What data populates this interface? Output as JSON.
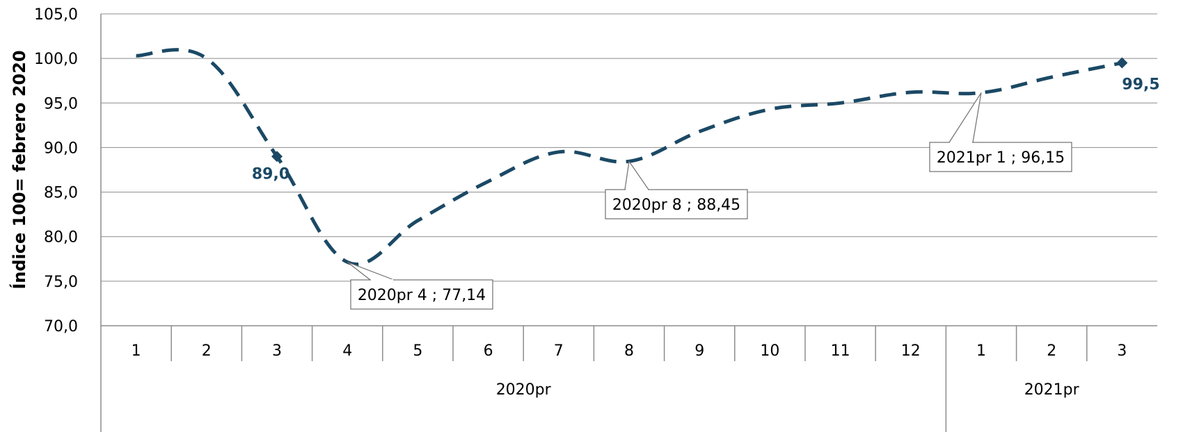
{
  "chart_data": {
    "type": "line",
    "ylabel": "Índice 100= febrero 2020",
    "ylim": [
      70,
      105
    ],
    "yticks": [
      "70,0",
      "75,0",
      "80,0",
      "85,0",
      "90,0",
      "95,0",
      "100,0",
      "105,0"
    ],
    "categories": [
      "1",
      "2",
      "3",
      "4",
      "5",
      "6",
      "7",
      "8",
      "9",
      "10",
      "11",
      "12",
      "1",
      "2",
      "3"
    ],
    "groups": [
      {
        "label": "2020pr",
        "count": 12
      },
      {
        "label": "2021pr",
        "count": 3
      }
    ],
    "series": [
      {
        "values": [
          100.3,
          100.0,
          89.0,
          77.14,
          81.8,
          86.2,
          89.5,
          88.45,
          91.8,
          94.3,
          95.0,
          96.2,
          96.15,
          97.9,
          99.5
        ],
        "color": "#1b4965",
        "line_style": "dashed"
      }
    ],
    "data_labels": [
      {
        "index": 2,
        "text": "89,0"
      },
      {
        "index": 14,
        "text": "99,5"
      }
    ],
    "callouts": [
      {
        "index": 3,
        "text": "2020pr  4 ;  77,14"
      },
      {
        "index": 7,
        "text": "2020pr  8 ;  88,45"
      },
      {
        "index": 12,
        "text": "2021pr  1 ;  96,15"
      }
    ],
    "grid": "horizontal",
    "legend": "none"
  }
}
